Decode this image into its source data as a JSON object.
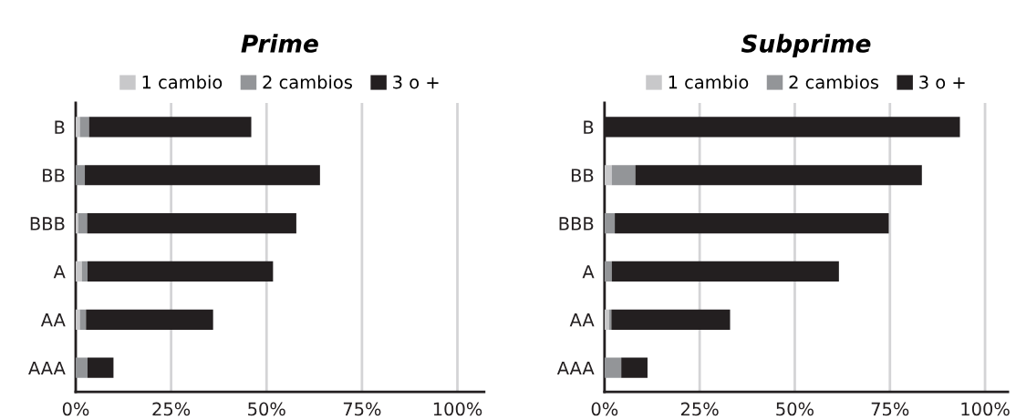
{
  "chart_data": [
    {
      "type": "bar",
      "title": "Prime",
      "orientation": "horizontal",
      "stacked": true,
      "categories": [
        "B",
        "BB",
        "BBB",
        "A",
        "AA",
        "AAA"
      ],
      "series": [
        {
          "name": "1 cambio",
          "color": "#c8c8ca",
          "values": [
            1.1,
            0,
            0.7,
            1.6,
            1.1,
            0
          ]
        },
        {
          "name": "2 cambios",
          "color": "#939598",
          "values": [
            2.4,
            2.4,
            2.3,
            1.5,
            1.6,
            3.1
          ]
        },
        {
          "name": "3 o +",
          "color": "#231f20",
          "values": [
            42.5,
            61.6,
            54.8,
            48.6,
            33.3,
            6.8
          ]
        }
      ],
      "xlim": [
        0,
        107
      ],
      "xticks": [
        {
          "value": 0,
          "label": "0%"
        },
        {
          "value": 25,
          "label": "25%"
        },
        {
          "value": 50,
          "label": "50%"
        },
        {
          "value": 75,
          "label": "75%"
        },
        {
          "value": 100,
          "label": "100%"
        }
      ],
      "grid": "x",
      "legend": "top"
    },
    {
      "type": "bar",
      "title": "Subprime",
      "orientation": "horizontal",
      "stacked": true,
      "categories": [
        "B",
        "BB",
        "BBB",
        "A",
        "AA",
        "AAA"
      ],
      "series": [
        {
          "name": "1 cambio",
          "color": "#c8c8ca",
          "values": [
            0,
            1.9,
            0,
            0,
            1.2,
            0
          ]
        },
        {
          "name": "2 cambios",
          "color": "#939598",
          "values": [
            0,
            6.2,
            2.7,
            1.9,
            0.6,
            4.4
          ]
        },
        {
          "name": "3 o +",
          "color": "#231f20",
          "values": [
            93.4,
            75.3,
            72.0,
            59.7,
            31.2,
            6.9
          ]
        }
      ],
      "xlim": [
        0,
        106
      ],
      "xticks": [
        {
          "value": 0,
          "label": "0%"
        },
        {
          "value": 25,
          "label": "25%"
        },
        {
          "value": 50,
          "label": "50%"
        },
        {
          "value": 75,
          "label": "75%"
        },
        {
          "value": 100,
          "label": "100%"
        }
      ],
      "grid": "x",
      "legend": "top"
    }
  ]
}
